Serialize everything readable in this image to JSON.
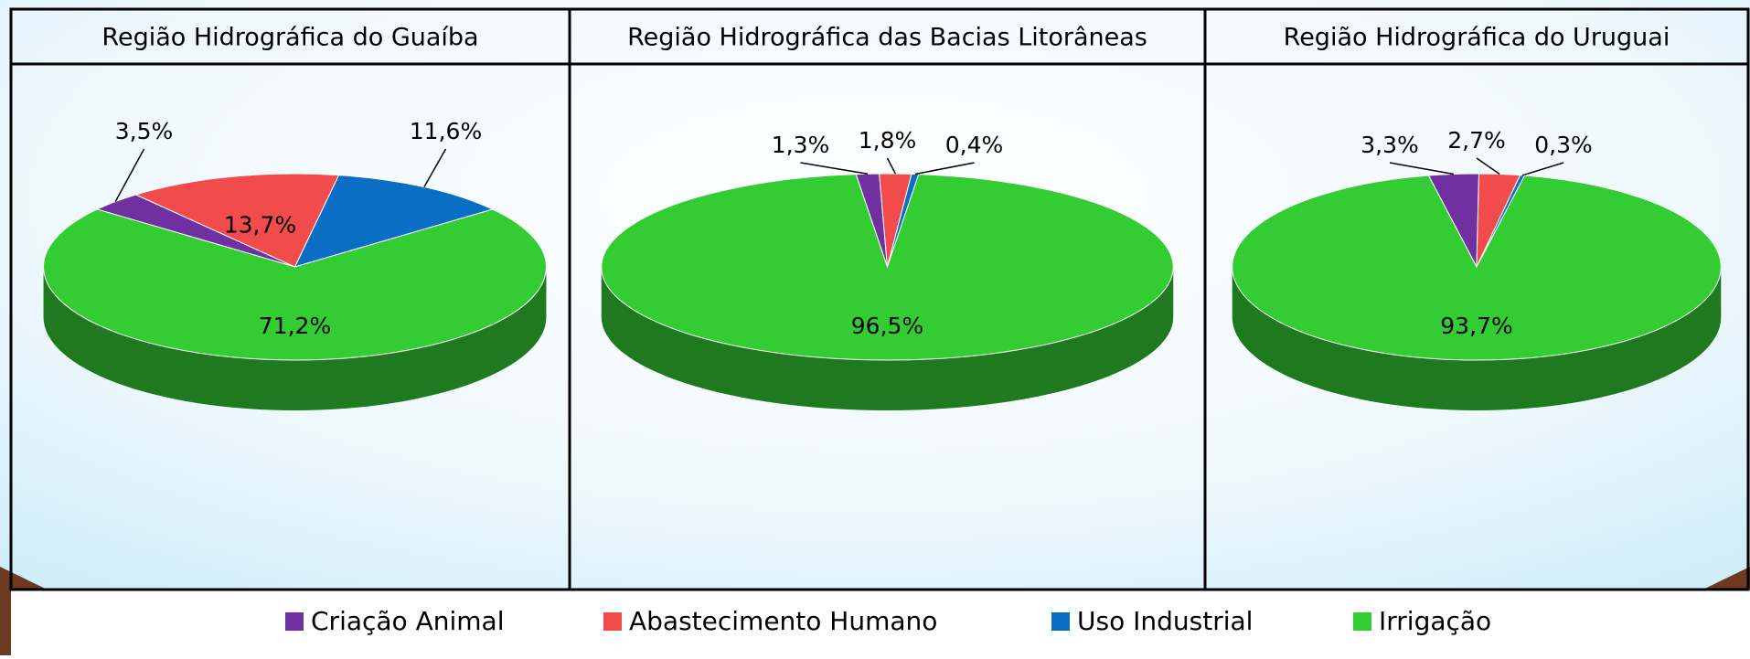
{
  "chart_data": [
    {
      "type": "pie",
      "title": "Região Hidrográfica do Guaíba",
      "categories": [
        "Criação Animal",
        "Abastecimento Humano",
        "Uso Industrial",
        "Irrigação"
      ],
      "colors": [
        "#7030a0",
        "#f24b4b",
        "#0a6fc4",
        "#33cc33"
      ],
      "values": [
        3.5,
        13.7,
        11.6,
        71.2
      ],
      "value_labels": [
        "3,5%",
        "13,7%",
        "11,6%",
        "71,2%"
      ]
    },
    {
      "type": "pie",
      "title": "Região Hidrográfica das Bacias Litorâneas",
      "values": [
        1.3,
        1.8,
        0.4,
        96.5
      ],
      "value_labels": [
        "1,3%",
        "1,8%",
        "0,4%",
        "96,5%"
      ]
    },
    {
      "type": "pie",
      "title": "Região Hidrográfica do Uruguai",
      "values": [
        3.3,
        2.7,
        0.3,
        93.7
      ],
      "value_labels": [
        "3,3%",
        "2,7%",
        "0,3%",
        "93,7%"
      ]
    }
  ]
}
